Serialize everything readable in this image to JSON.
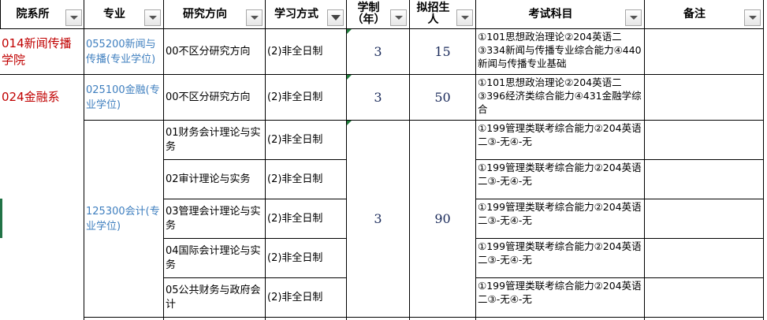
{
  "headers": [
    {
      "label": "院系所",
      "filter": "dropdown"
    },
    {
      "label": "专业",
      "filter": "dropdown"
    },
    {
      "label": "研究方向",
      "filter": "dropdown"
    },
    {
      "label": "学习方式",
      "filter": "filter-active"
    },
    {
      "label": "学制（年）",
      "filter": "dropdown"
    },
    {
      "label": "拟招生人",
      "filter": "dropdown"
    },
    {
      "label": "考试科目",
      "filter": "dropdown"
    },
    {
      "label": "备注",
      "filter": "dropdown"
    }
  ],
  "departments": [
    "014新闻传播学院",
    "024金融系"
  ],
  "majors": [
    "055200新闻与传播(专业学位)",
    "025100金融(专业学位)",
    "125300会计(专业学位)"
  ],
  "directions": [
    "00不区分研究方向",
    "00不区分研究方向",
    "01财务会计理论与实务",
    "02审计理论与实务",
    "03管理会计理论与实务",
    "04国际会计理论与实务",
    "05公共财务与政府会计"
  ],
  "study_modes": [
    "(2)非全日制",
    "(2)非全日制",
    "(2)非全日制",
    "(2)非全日制",
    "(2)非全日制",
    "(2)非全日制",
    "(2)非全日制"
  ],
  "durations": [
    "3",
    "3",
    "3"
  ],
  "enrollment": [
    "15",
    "50",
    "90"
  ],
  "exams": [
    "①101思想政治理论②204英语二③334新闻与传播专业综合能力④440新闻与传播专业基础",
    "①101思想政治理论②204英语二③396经济类综合能力④431金融学综合",
    "①199管理类联考综合能力②204英语二③-无④-无",
    "①199管理类联考综合能力②204英语二③-无④-无",
    "①199管理类联考综合能力②204英语二③-无④-无",
    "①199管理类联考综合能力②204英语二③-无④-无",
    "①199管理类联考综合能力②204英语二③-无④-无"
  ],
  "colors": {
    "department": "#c00000",
    "major": "#3f7fbf",
    "selection": "#217346"
  }
}
